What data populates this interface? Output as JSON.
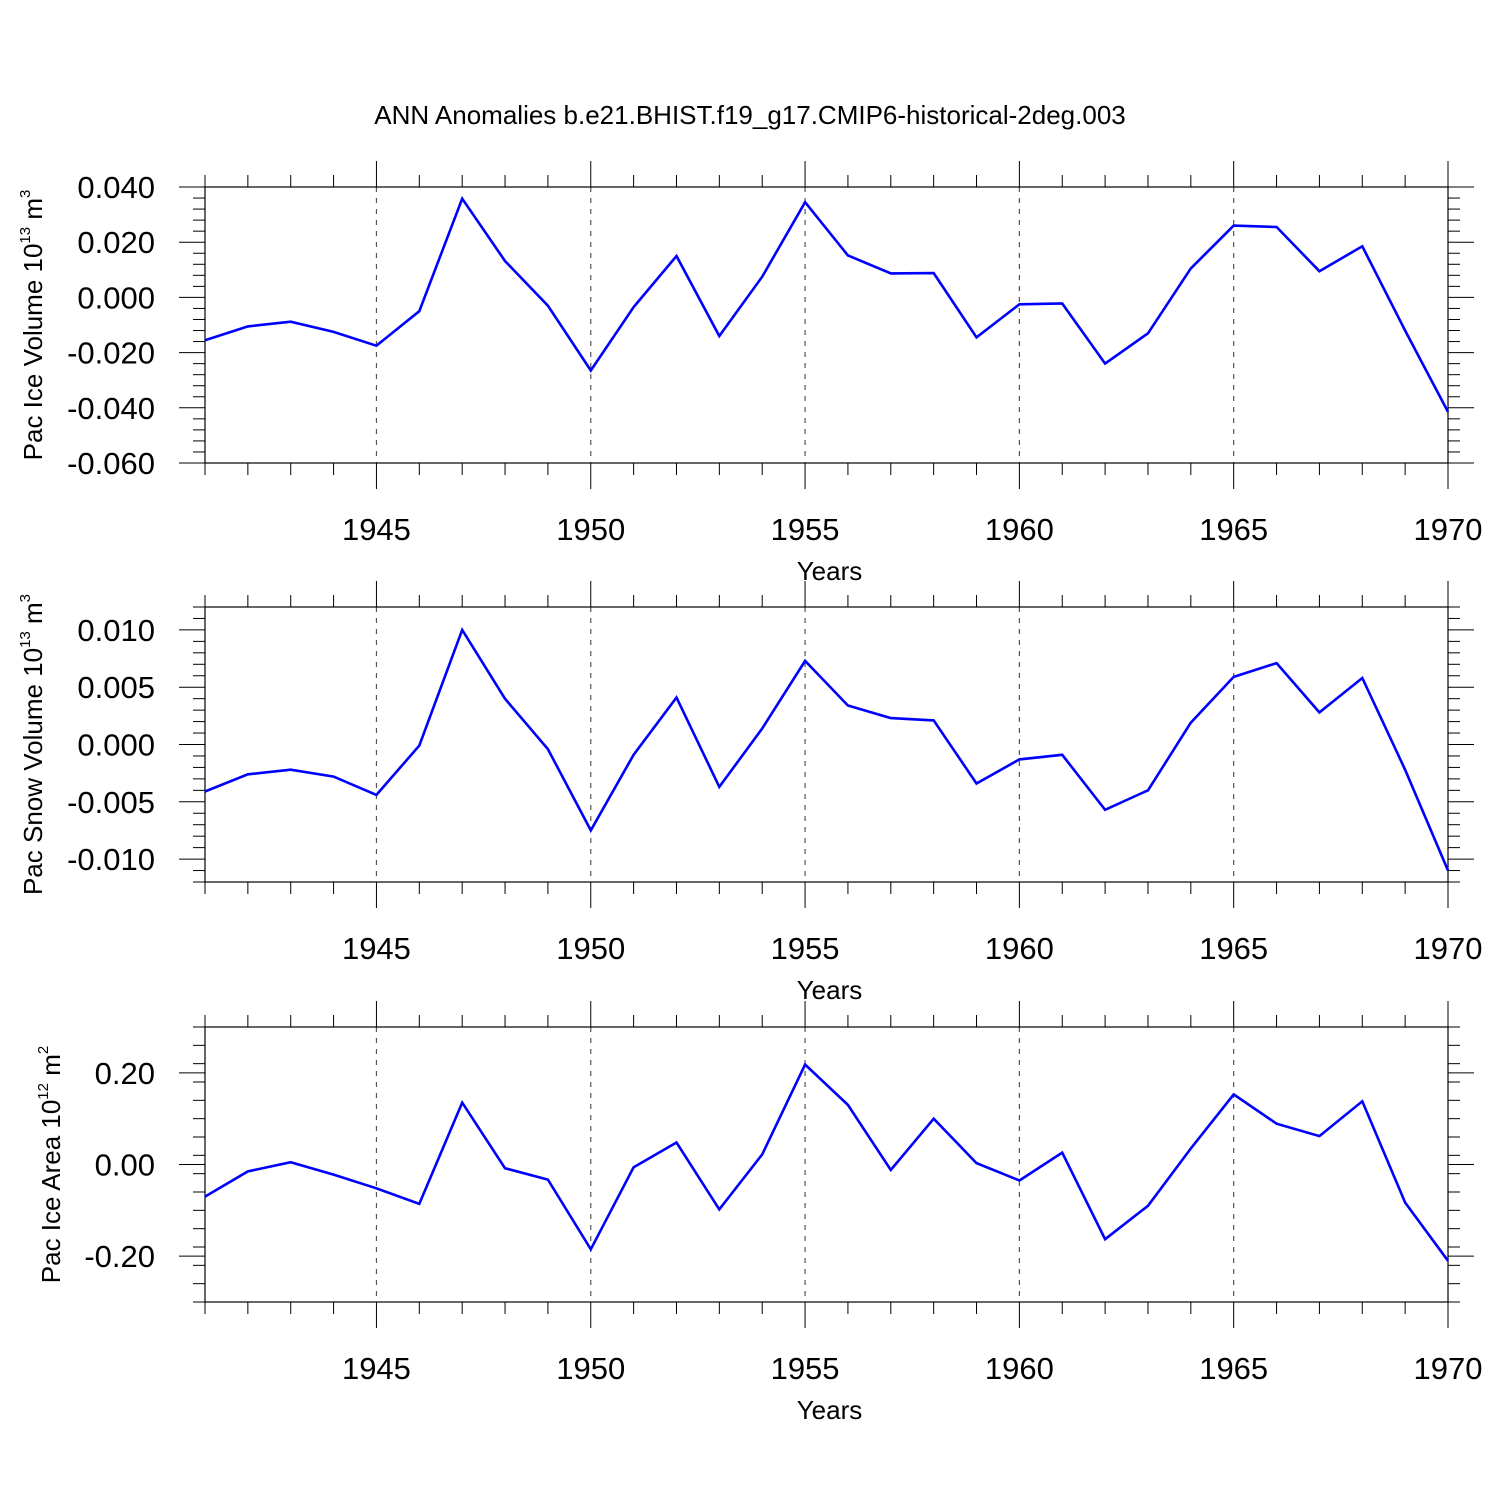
{
  "title": "ANN Anomalies b.e21.BHIST.f19_g17.CMIP6-historical-2deg.003",
  "line_color": "#0000ff",
  "chart_data": [
    {
      "type": "line",
      "ylabel": "Pac Ice Volume 10",
      "ylabel_sup": "13",
      "ylabel_unit": " m",
      "ylabel_unit_sup": "3",
      "xlabel": "Years",
      "xlim": [
        1941,
        1970
      ],
      "ylim": [
        -0.06,
        0.04
      ],
      "yticks": [
        -0.06,
        -0.04,
        -0.02,
        0.0,
        0.02,
        0.04
      ],
      "ytick_labels": [
        "-0.060",
        "-0.040",
        "-0.020",
        "0.000",
        "0.020",
        "0.040"
      ],
      "xticks": [
        1945,
        1950,
        1955,
        1960,
        1965,
        1970
      ],
      "xtick_labels": [
        "1945",
        "1950",
        "1955",
        "1960",
        "1965",
        "1970"
      ],
      "x": [
        1941,
        1942,
        1943,
        1944,
        1945,
        1946,
        1947,
        1948,
        1949,
        1950,
        1951,
        1952,
        1953,
        1954,
        1955,
        1956,
        1957,
        1958,
        1959,
        1960,
        1961,
        1962,
        1963,
        1964,
        1965,
        1966,
        1967,
        1968,
        1969,
        1970
      ],
      "series": [
        {
          "values": [
            -0.0155,
            -0.0105,
            -0.0088,
            -0.0125,
            -0.0175,
            -0.005,
            0.0358,
            0.0132,
            -0.003,
            -0.0265,
            -0.0035,
            0.015,
            -0.014,
            0.0075,
            0.0345,
            0.0152,
            0.0087,
            0.0088,
            -0.0145,
            -0.0025,
            -0.0022,
            -0.024,
            -0.013,
            0.0105,
            0.026,
            0.0255,
            0.0095,
            0.0185,
            -0.012,
            -0.0415
          ]
        }
      ]
    },
    {
      "type": "line",
      "ylabel": "Pac Snow Volume 10",
      "ylabel_sup": "13",
      "ylabel_unit": " m",
      "ylabel_unit_sup": "3",
      "xlabel": "Years",
      "xlim": [
        1941,
        1970
      ],
      "ylim": [
        -0.012,
        0.012
      ],
      "yticks": [
        -0.01,
        -0.005,
        0.0,
        0.005,
        0.01
      ],
      "ytick_labels": [
        "-0.010",
        "-0.005",
        "0.000",
        "0.005",
        "0.010"
      ],
      "xticks": [
        1945,
        1950,
        1955,
        1960,
        1965,
        1970
      ],
      "xtick_labels": [
        "1945",
        "1950",
        "1955",
        "1960",
        "1965",
        "1970"
      ],
      "x": [
        1941,
        1942,
        1943,
        1944,
        1945,
        1946,
        1947,
        1948,
        1949,
        1950,
        1951,
        1952,
        1953,
        1954,
        1955,
        1956,
        1957,
        1958,
        1959,
        1960,
        1961,
        1962,
        1963,
        1964,
        1965,
        1966,
        1967,
        1968,
        1969,
        1970
      ],
      "series": [
        {
          "values": [
            -0.0041,
            -0.0026,
            -0.0022,
            -0.0028,
            -0.0044,
            -0.0001,
            0.01,
            0.004,
            -0.0004,
            -0.0075,
            -0.0009,
            0.0041,
            -0.0037,
            0.0014,
            0.0073,
            0.0034,
            0.0023,
            0.0021,
            -0.0034,
            -0.0013,
            -0.0009,
            -0.0057,
            -0.004,
            0.0019,
            0.0059,
            0.0071,
            0.0028,
            0.0058,
            -0.0022,
            -0.011
          ]
        }
      ]
    },
    {
      "type": "line",
      "ylabel": "Pac Ice Area 10",
      "ylabel_sup": "12",
      "ylabel_unit": " m",
      "ylabel_unit_sup": "2",
      "xlabel": "Years",
      "xlim": [
        1941,
        1970
      ],
      "ylim": [
        -0.3,
        0.3
      ],
      "yticks": [
        -0.2,
        0.0,
        0.2
      ],
      "ytick_labels": [
        "-0.20",
        "0.00",
        "0.20"
      ],
      "xticks": [
        1945,
        1950,
        1955,
        1960,
        1965,
        1970
      ],
      "xtick_labels": [
        "1945",
        "1950",
        "1955",
        "1960",
        "1965",
        "1970"
      ],
      "x": [
        1941,
        1942,
        1943,
        1944,
        1945,
        1946,
        1947,
        1948,
        1949,
        1950,
        1951,
        1952,
        1953,
        1954,
        1955,
        1956,
        1957,
        1958,
        1959,
        1960,
        1961,
        1962,
        1963,
        1964,
        1965,
        1966,
        1967,
        1968,
        1969,
        1970
      ],
      "series": [
        {
          "values": [
            -0.07,
            -0.015,
            0.005,
            -0.022,
            -0.052,
            -0.086,
            0.135,
            -0.008,
            -0.033,
            -0.185,
            -0.006,
            0.048,
            -0.098,
            0.022,
            0.218,
            0.13,
            -0.012,
            0.1,
            0.003,
            -0.035,
            0.026,
            -0.163,
            -0.09,
            0.035,
            0.153,
            0.089,
            0.062,
            0.138,
            -0.083,
            -0.21
          ]
        }
      ]
    }
  ]
}
